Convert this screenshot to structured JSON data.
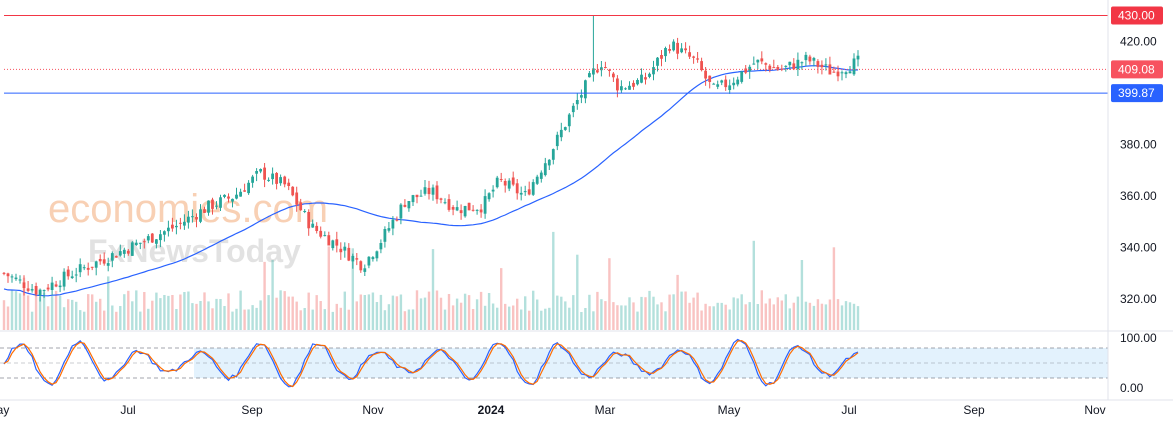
{
  "chart_data": {
    "type": "candlestick",
    "price_axis": {
      "ticks": [
        "420.00",
        "400.00",
        "380.00",
        "360.00",
        "340.00",
        "320.00"
      ],
      "tick_values": [
        420,
        400,
        380,
        360,
        340,
        320
      ],
      "range": [
        308,
        436
      ]
    },
    "time_axis": {
      "labels": [
        "May",
        "Jul",
        "Sep",
        "Nov",
        "2024",
        "Mar",
        "May",
        "Jul",
        "Sep",
        "Nov"
      ],
      "bold_label": "2024"
    },
    "horizontal_lines": [
      {
        "label": "430.00",
        "value": 430.0,
        "color": "#f23645",
        "style": "solid"
      },
      {
        "label": "409.08",
        "value": 409.08,
        "color": "#f7525f",
        "style": "dotted"
      },
      {
        "label": "399.87",
        "value": 399.87,
        "color": "#2962ff",
        "style": "solid"
      }
    ],
    "moving_average": {
      "color": "#2962ff"
    },
    "oscillator": {
      "ticks": [
        "100.00",
        "0.00"
      ],
      "band": [
        20,
        80
      ],
      "mid": 50,
      "colors": {
        "k": "#2962ff",
        "d": "#ff6d00",
        "band_fill": "#e3f2fd"
      }
    },
    "colors": {
      "up": "#26a69a",
      "down": "#ef5350"
    },
    "grid": false
  },
  "watermark": {
    "line1": "economies.com",
    "line2": "FxNewsToday"
  }
}
